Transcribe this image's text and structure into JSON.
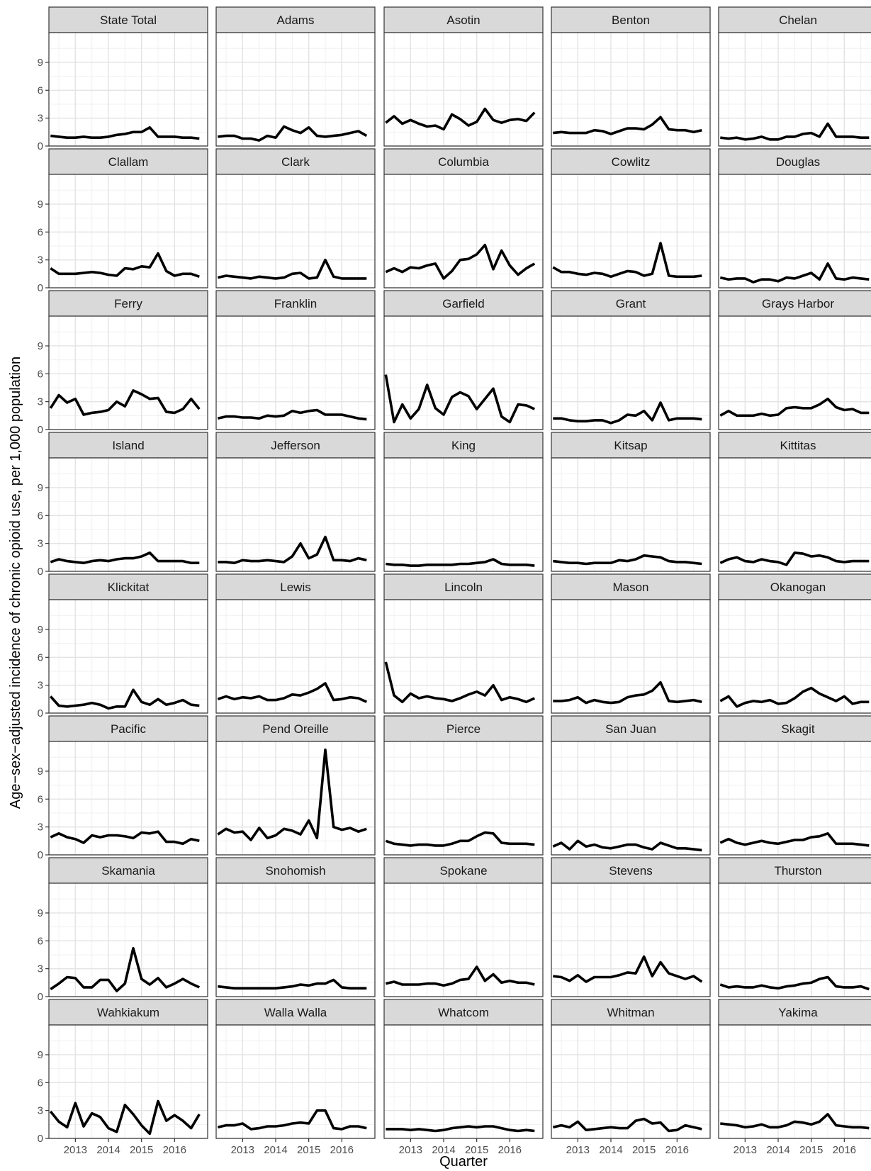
{
  "chart_data": {
    "type": "line",
    "title": "",
    "xlabel": "Quarter",
    "ylabel": "Age−sex−adjusted incidence of chronic opioid use, per 1,000 population",
    "x": [
      2012.25,
      2012.5,
      2012.75,
      2013.0,
      2013.25,
      2013.5,
      2013.75,
      2014.0,
      2014.25,
      2014.5,
      2014.75,
      2015.0,
      2015.25,
      2015.5,
      2015.75,
      2016.0,
      2016.25,
      2016.5,
      2016.75
    ],
    "xticks": [
      2013,
      2014,
      2015,
      2016
    ],
    "xtick_labels": [
      "2013",
      "2014",
      "2015",
      "2016"
    ],
    "xlim": [
      2012.2,
      2017.0
    ],
    "yticks": [
      0,
      3,
      6,
      9
    ],
    "ytick_labels": [
      "0",
      "3",
      "6",
      "9"
    ],
    "ylim": [
      0,
      12.2
    ],
    "grid": true,
    "facets": [
      {
        "name": "State Total",
        "values": [
          1.1,
          1.0,
          0.9,
          0.9,
          1.0,
          0.9,
          0.9,
          1.0,
          1.2,
          1.3,
          1.5,
          1.5,
          2.0,
          1.0,
          1.0,
          1.0,
          0.9,
          0.9,
          0.8
        ]
      },
      {
        "name": "Adams",
        "values": [
          1.0,
          1.1,
          1.1,
          0.8,
          0.8,
          0.6,
          1.1,
          0.9,
          2.1,
          1.7,
          1.4,
          2.0,
          1.1,
          1.0,
          1.1,
          1.2,
          1.4,
          1.6,
          1.1
        ]
      },
      {
        "name": "Asotin",
        "values": [
          2.5,
          3.2,
          2.4,
          2.8,
          2.4,
          2.1,
          2.2,
          1.8,
          3.4,
          2.9,
          2.2,
          2.6,
          4.0,
          2.8,
          2.5,
          2.8,
          2.9,
          2.7,
          3.6
        ]
      },
      {
        "name": "Benton",
        "values": [
          1.4,
          1.5,
          1.4,
          1.4,
          1.4,
          1.7,
          1.6,
          1.3,
          1.6,
          1.9,
          1.9,
          1.8,
          2.3,
          3.1,
          1.8,
          1.7,
          1.7,
          1.5,
          1.7
        ]
      },
      {
        "name": "Chelan",
        "values": [
          0.9,
          0.8,
          0.9,
          0.7,
          0.8,
          1.0,
          0.7,
          0.7,
          1.0,
          1.0,
          1.3,
          1.4,
          1.0,
          2.4,
          1.0,
          1.0,
          1.0,
          0.9,
          0.9
        ]
      },
      {
        "name": "Clallam",
        "values": [
          2.1,
          1.5,
          1.5,
          1.5,
          1.6,
          1.7,
          1.6,
          1.4,
          1.3,
          2.1,
          2.0,
          2.3,
          2.2,
          3.7,
          1.8,
          1.3,
          1.5,
          1.5,
          1.2
        ]
      },
      {
        "name": "Clark",
        "values": [
          1.1,
          1.3,
          1.2,
          1.1,
          1.0,
          1.2,
          1.1,
          1.0,
          1.1,
          1.5,
          1.6,
          1.0,
          1.1,
          3.0,
          1.2,
          1.0,
          1.0,
          1.0,
          1.0
        ]
      },
      {
        "name": "Columbia",
        "values": [
          1.7,
          2.1,
          1.7,
          2.2,
          2.1,
          2.4,
          2.6,
          1.0,
          1.8,
          3.0,
          3.1,
          3.6,
          4.6,
          2.0,
          4.0,
          2.4,
          1.4,
          2.1,
          2.6
        ]
      },
      {
        "name": "Cowlitz",
        "values": [
          2.2,
          1.7,
          1.7,
          1.5,
          1.4,
          1.6,
          1.5,
          1.2,
          1.5,
          1.8,
          1.7,
          1.3,
          1.5,
          4.8,
          1.3,
          1.2,
          1.2,
          1.2,
          1.3
        ]
      },
      {
        "name": "Douglas",
        "values": [
          1.1,
          0.9,
          1.0,
          1.0,
          0.6,
          0.9,
          0.9,
          0.7,
          1.1,
          1.0,
          1.3,
          1.6,
          0.9,
          2.6,
          1.0,
          0.9,
          1.1,
          1.0,
          0.9
        ]
      },
      {
        "name": "Ferry",
        "values": [
          2.3,
          3.7,
          2.9,
          3.3,
          1.6,
          1.8,
          1.9,
          2.1,
          3.0,
          2.5,
          4.2,
          3.8,
          3.3,
          3.4,
          1.9,
          1.8,
          2.2,
          3.3,
          2.2
        ]
      },
      {
        "name": "Franklin",
        "values": [
          1.2,
          1.4,
          1.4,
          1.3,
          1.3,
          1.2,
          1.5,
          1.4,
          1.5,
          2.0,
          1.8,
          2.0,
          2.1,
          1.6,
          1.6,
          1.6,
          1.4,
          1.2,
          1.1
        ]
      },
      {
        "name": "Garfield",
        "values": [
          5.9,
          0.8,
          2.7,
          1.2,
          2.2,
          4.8,
          2.3,
          1.6,
          3.5,
          4.0,
          3.6,
          2.2,
          3.3,
          4.4,
          1.4,
          0.8,
          2.7,
          2.6,
          2.2
        ]
      },
      {
        "name": "Grant",
        "values": [
          1.2,
          1.2,
          1.0,
          0.9,
          0.9,
          1.0,
          1.0,
          0.7,
          1.0,
          1.6,
          1.5,
          2.0,
          1.0,
          2.9,
          1.0,
          1.2,
          1.2,
          1.2,
          1.1
        ]
      },
      {
        "name": "Grays Harbor",
        "values": [
          1.5,
          2.0,
          1.5,
          1.5,
          1.5,
          1.7,
          1.5,
          1.6,
          2.3,
          2.4,
          2.3,
          2.3,
          2.7,
          3.3,
          2.4,
          2.1,
          2.2,
          1.8,
          1.8
        ]
      },
      {
        "name": "Island",
        "values": [
          1.0,
          1.3,
          1.1,
          1.0,
          0.9,
          1.1,
          1.2,
          1.1,
          1.3,
          1.4,
          1.4,
          1.6,
          2.0,
          1.1,
          1.1,
          1.1,
          1.1,
          0.9,
          0.9
        ]
      },
      {
        "name": "Jefferson",
        "values": [
          1.0,
          1.0,
          0.9,
          1.2,
          1.1,
          1.1,
          1.2,
          1.1,
          1.0,
          1.6,
          3.0,
          1.4,
          1.8,
          3.7,
          1.2,
          1.2,
          1.1,
          1.4,
          1.2
        ]
      },
      {
        "name": "King",
        "values": [
          0.8,
          0.7,
          0.7,
          0.6,
          0.6,
          0.7,
          0.7,
          0.7,
          0.7,
          0.8,
          0.8,
          0.9,
          1.0,
          1.3,
          0.8,
          0.7,
          0.7,
          0.7,
          0.6
        ]
      },
      {
        "name": "Kitsap",
        "values": [
          1.1,
          1.0,
          0.9,
          0.9,
          0.8,
          0.9,
          0.9,
          0.9,
          1.2,
          1.1,
          1.3,
          1.7,
          1.6,
          1.5,
          1.1,
          1.0,
          1.0,
          0.9,
          0.8
        ]
      },
      {
        "name": "Kittitas",
        "values": [
          0.9,
          1.3,
          1.5,
          1.1,
          1.0,
          1.3,
          1.1,
          1.0,
          0.7,
          2.0,
          1.9,
          1.6,
          1.7,
          1.5,
          1.1,
          1.0,
          1.1,
          1.1,
          1.1
        ]
      },
      {
        "name": "Klickitat",
        "values": [
          1.8,
          0.8,
          0.7,
          0.8,
          0.9,
          1.1,
          0.9,
          0.5,
          0.7,
          0.7,
          2.5,
          1.2,
          0.9,
          1.5,
          0.9,
          1.1,
          1.4,
          0.9,
          0.8
        ]
      },
      {
        "name": "Lewis",
        "values": [
          1.5,
          1.8,
          1.5,
          1.7,
          1.6,
          1.8,
          1.4,
          1.4,
          1.6,
          2.0,
          1.9,
          2.2,
          2.6,
          3.2,
          1.4,
          1.5,
          1.7,
          1.6,
          1.2
        ]
      },
      {
        "name": "Lincoln",
        "values": [
          5.5,
          1.9,
          1.2,
          2.1,
          1.6,
          1.8,
          1.6,
          1.5,
          1.3,
          1.6,
          2.0,
          2.3,
          1.9,
          3.0,
          1.4,
          1.7,
          1.5,
          1.2,
          1.6
        ]
      },
      {
        "name": "Mason",
        "values": [
          1.3,
          1.3,
          1.4,
          1.7,
          1.1,
          1.4,
          1.2,
          1.1,
          1.2,
          1.7,
          1.9,
          2.0,
          2.4,
          3.3,
          1.3,
          1.2,
          1.3,
          1.4,
          1.2
        ]
      },
      {
        "name": "Okanogan",
        "values": [
          1.3,
          1.8,
          0.7,
          1.1,
          1.3,
          1.2,
          1.4,
          1.0,
          1.1,
          1.6,
          2.3,
          2.7,
          2.1,
          1.7,
          1.3,
          1.8,
          1.0,
          1.2,
          1.2
        ]
      },
      {
        "name": "Pacific",
        "values": [
          1.9,
          2.3,
          1.9,
          1.7,
          1.3,
          2.1,
          1.9,
          2.1,
          2.1,
          2.0,
          1.8,
          2.4,
          2.3,
          2.5,
          1.4,
          1.4,
          1.2,
          1.7,
          1.5
        ]
      },
      {
        "name": "Pend Oreille",
        "values": [
          2.2,
          2.8,
          2.4,
          2.5,
          1.6,
          2.9,
          1.8,
          2.1,
          2.8,
          2.6,
          2.2,
          3.7,
          1.8,
          11.3,
          3.0,
          2.7,
          2.9,
          2.5,
          2.8
        ]
      },
      {
        "name": "Pierce",
        "values": [
          1.5,
          1.2,
          1.1,
          1.0,
          1.1,
          1.1,
          1.0,
          1.0,
          1.2,
          1.5,
          1.5,
          2.0,
          2.4,
          2.3,
          1.3,
          1.2,
          1.2,
          1.2,
          1.1
        ]
      },
      {
        "name": "San Juan",
        "values": [
          0.9,
          1.3,
          0.6,
          1.5,
          0.9,
          1.1,
          0.8,
          0.7,
          0.9,
          1.1,
          1.1,
          0.8,
          0.6,
          1.3,
          1.0,
          0.7,
          0.7,
          0.6,
          0.5
        ]
      },
      {
        "name": "Skagit",
        "values": [
          1.3,
          1.7,
          1.3,
          1.1,
          1.3,
          1.5,
          1.3,
          1.2,
          1.4,
          1.6,
          1.6,
          1.9,
          2.0,
          2.3,
          1.2,
          1.2,
          1.2,
          1.1,
          1.0
        ]
      },
      {
        "name": "Skamania",
        "values": [
          0.8,
          1.4,
          2.1,
          2.0,
          1.0,
          1.0,
          1.8,
          1.8,
          0.6,
          1.4,
          5.2,
          1.9,
          1.3,
          2.0,
          1.0,
          1.4,
          1.9,
          1.4,
          1.0
        ]
      },
      {
        "name": "Snohomish",
        "values": [
          1.1,
          1.0,
          0.9,
          0.9,
          0.9,
          0.9,
          0.9,
          0.9,
          1.0,
          1.1,
          1.3,
          1.2,
          1.4,
          1.4,
          1.8,
          1.0,
          0.9,
          0.9,
          0.9
        ]
      },
      {
        "name": "Spokane",
        "values": [
          1.4,
          1.6,
          1.3,
          1.3,
          1.3,
          1.4,
          1.4,
          1.2,
          1.4,
          1.8,
          1.9,
          3.2,
          1.7,
          2.4,
          1.5,
          1.7,
          1.5,
          1.5,
          1.3
        ]
      },
      {
        "name": "Stevens",
        "values": [
          2.2,
          2.1,
          1.7,
          2.3,
          1.6,
          2.1,
          2.1,
          2.1,
          2.3,
          2.6,
          2.5,
          4.3,
          2.2,
          3.7,
          2.5,
          2.2,
          1.9,
          2.2,
          1.6
        ]
      },
      {
        "name": "Thurston",
        "values": [
          1.3,
          1.0,
          1.1,
          1.0,
          1.0,
          1.2,
          1.0,
          0.9,
          1.1,
          1.2,
          1.4,
          1.5,
          1.9,
          2.1,
          1.1,
          1.0,
          1.0,
          1.1,
          0.8
        ]
      },
      {
        "name": "Wahkiakum",
        "values": [
          2.9,
          1.8,
          1.2,
          3.8,
          1.3,
          2.7,
          2.3,
          1.1,
          0.7,
          3.6,
          2.6,
          1.4,
          0.5,
          4.0,
          1.9,
          2.5,
          1.9,
          1.1,
          2.6
        ]
      },
      {
        "name": "Walla Walla",
        "values": [
          1.2,
          1.4,
          1.4,
          1.6,
          1.0,
          1.1,
          1.3,
          1.3,
          1.4,
          1.6,
          1.7,
          1.6,
          3.0,
          3.0,
          1.1,
          1.0,
          1.3,
          1.3,
          1.1
        ]
      },
      {
        "name": "Whatcom",
        "values": [
          1.0,
          1.0,
          1.0,
          0.9,
          1.0,
          0.9,
          0.8,
          0.9,
          1.1,
          1.2,
          1.3,
          1.2,
          1.3,
          1.3,
          1.1,
          0.9,
          0.8,
          0.9,
          0.8
        ]
      },
      {
        "name": "Whitman",
        "values": [
          1.2,
          1.4,
          1.2,
          1.8,
          0.9,
          1.0,
          1.1,
          1.2,
          1.1,
          1.1,
          1.9,
          2.1,
          1.6,
          1.7,
          0.8,
          0.9,
          1.4,
          1.2,
          1.0
        ]
      },
      {
        "name": "Yakima",
        "values": [
          1.6,
          1.5,
          1.4,
          1.2,
          1.3,
          1.5,
          1.2,
          1.2,
          1.4,
          1.8,
          1.7,
          1.5,
          1.8,
          2.6,
          1.4,
          1.3,
          1.2,
          1.2,
          1.1
        ]
      }
    ]
  }
}
